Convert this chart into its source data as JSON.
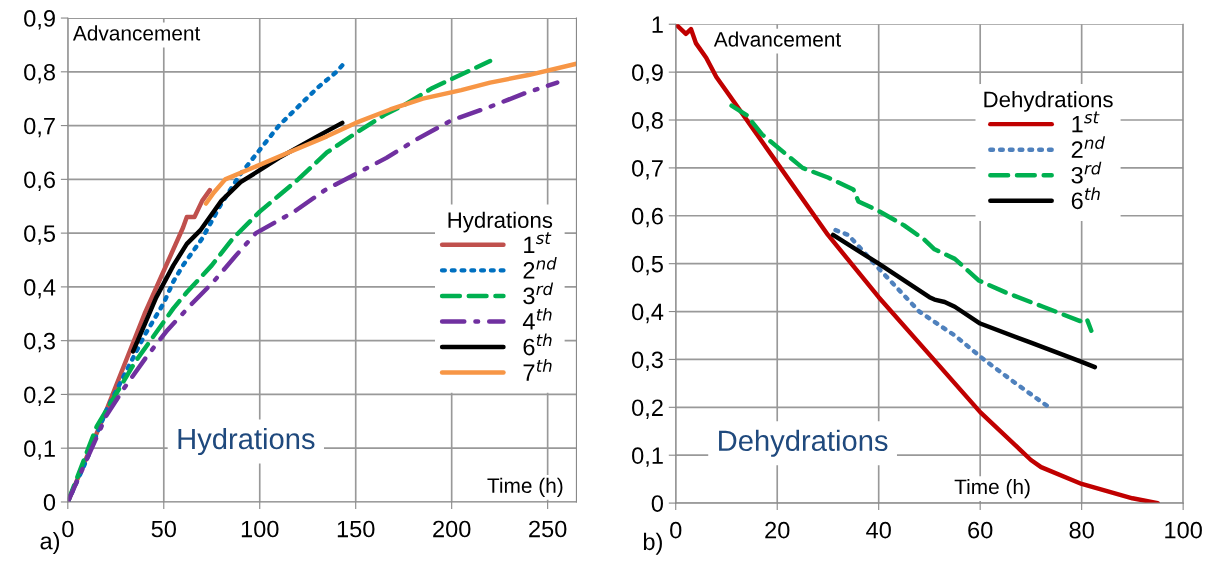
{
  "chart_data": [
    {
      "type": "line",
      "xlabel": "Time (h)",
      "ylabel": "Advancement",
      "legend_title": "Hydrations",
      "legend": "right",
      "grid": true,
      "marker": "none",
      "xlim": [
        0,
        265
      ],
      "xticks": [
        0,
        50,
        100,
        150,
        200,
        250
      ],
      "ylim": [
        0,
        0.9
      ],
      "yticks": [
        0,
        {
          "value": 0.1,
          "label": "0,1"
        },
        {
          "value": 0.2,
          "label": "0,2"
        },
        {
          "value": 0.3,
          "label": "0,3"
        },
        {
          "value": 0.4,
          "label": "0,4"
        },
        {
          "value": 0.5,
          "label": "0,5"
        },
        {
          "value": 0.6,
          "label": "0,6"
        },
        {
          "value": 0.7,
          "label": "0,7"
        },
        {
          "value": 0.8,
          "label": "0,8"
        },
        {
          "value": 0.9,
          "label": "0,9"
        }
      ],
      "annotations": [
        "Hydrations",
        "a)"
      ],
      "series": [
        {
          "name": "1$^{st}$",
          "color": "#c0504d",
          "line_style": "solid",
          "x": [
            0,
            20,
            40,
            60,
            62,
            66,
            70,
            74
          ],
          "values": [
            0,
            0.17,
            0.35,
            0.51,
            0.53,
            0.53,
            0.56,
            0.58
          ]
        },
        {
          "name": "2$^{nd}$",
          "color": "#0070c0",
          "line_style": "dotted",
          "x": [
            0,
            10,
            20,
            30,
            40,
            50,
            55,
            60,
            70,
            80,
            90,
            100,
            110,
            120,
            130,
            140,
            145
          ],
          "values": [
            0,
            0.08,
            0.17,
            0.24,
            0.31,
            0.37,
            0.41,
            0.44,
            0.49,
            0.555,
            0.61,
            0.655,
            0.7,
            0.735,
            0.77,
            0.8,
            0.82
          ]
        },
        {
          "name": "3$^{rd}$",
          "color": "#00b050",
          "line_style": "dashed",
          "x": [
            0,
            15,
            25,
            35,
            45,
            55,
            62,
            75,
            86,
            100,
            110,
            120,
            135,
            150,
            165,
            176,
            190,
            205,
            220
          ],
          "values": [
            0,
            0.14,
            0.2,
            0.26,
            0.31,
            0.36,
            0.39,
            0.44,
            0.49,
            0.54,
            0.57,
            0.6,
            0.65,
            0.686,
            0.72,
            0.74,
            0.77,
            0.795,
            0.82
          ]
        },
        {
          "name": "4$^{th}$",
          "color": "#7030a0",
          "line_style": "dashdot",
          "x": [
            0,
            10,
            20,
            29,
            41,
            52,
            65,
            76,
            88,
            98,
            118,
            134,
            150,
            166,
            182,
            200,
            220,
            238,
            255
          ],
          "values": [
            0,
            0.08,
            0.16,
            0.21,
            0.27,
            0.32,
            0.37,
            0.41,
            0.46,
            0.5,
            0.54,
            0.58,
            0.61,
            0.64,
            0.675,
            0.71,
            0.735,
            0.76,
            0.78
          ]
        },
        {
          "name": "6$^{th}$",
          "color": "#000000",
          "line_style": "solid",
          "x": [
            34,
            40,
            46,
            55,
            62,
            69,
            80,
            90,
            100,
            110,
            120,
            130,
            143
          ],
          "values": [
            0.28,
            0.33,
            0.38,
            0.44,
            0.48,
            0.505,
            0.56,
            0.595,
            0.617,
            0.64,
            0.66,
            0.68,
            0.705
          ]
        },
        {
          "name": "7$^{th}$",
          "color": "#f79646",
          "line_style": "solid",
          "x": [
            72,
            76,
            82,
            100,
            115,
            135,
            150,
            168,
            185,
            205,
            220,
            240,
            265
          ],
          "values": [
            0.555,
            0.575,
            0.6,
            0.627,
            0.65,
            0.68,
            0.705,
            0.73,
            0.75,
            0.766,
            0.78,
            0.794,
            0.815
          ]
        }
      ]
    },
    {
      "type": "line",
      "xlabel": "Time (h)",
      "ylabel": "Advancement",
      "legend_title": "Dehydrations",
      "legend": "top right",
      "grid": true,
      "marker": "none",
      "xlim": [
        0,
        100
      ],
      "xticks": [
        0,
        20,
        40,
        60,
        80,
        100
      ],
      "ylim": [
        0,
        1
      ],
      "yticks": [
        0,
        {
          "value": 0.1,
          "label": "0,1"
        },
        {
          "value": 0.2,
          "label": "0,2"
        },
        {
          "value": 0.3,
          "label": "0,3"
        },
        {
          "value": 0.4,
          "label": "0,4"
        },
        {
          "value": 0.5,
          "label": "0,5"
        },
        {
          "value": 0.6,
          "label": "0,6"
        },
        {
          "value": 0.7,
          "label": "0,7"
        },
        {
          "value": 0.8,
          "label": "0,8"
        },
        {
          "value": 0.9,
          "label": "0,9"
        },
        1
      ],
      "annotations": [
        "Dehydrations",
        "b)"
      ],
      "series": [
        {
          "name": "1$^{st}$",
          "color": "#c00000",
          "line_style": "solid",
          "x": [
            0,
            2,
            3,
            4,
            6,
            8,
            10,
            20,
            30,
            40,
            50,
            60,
            70,
            72,
            80,
            90,
            95
          ],
          "values": [
            1.0,
            0.98,
            0.99,
            0.96,
            0.93,
            0.89,
            0.86,
            0.71,
            0.56,
            0.43,
            0.31,
            0.19,
            0.09,
            0.075,
            0.04,
            0.01,
            0.0
          ]
        },
        {
          "name": "2$^{nd}$",
          "color": "#4f81bd",
          "line_style": "dotted",
          "x": [
            31.5,
            34,
            40,
            48,
            55,
            60.7,
            67,
            73.6
          ],
          "values": [
            0.57,
            0.56,
            0.49,
            0.4,
            0.35,
            0.3,
            0.25,
            0.2
          ]
        },
        {
          "name": "3$^{rd}$",
          "color": "#00b050",
          "line_style": "dashed",
          "x": [
            11,
            14,
            17,
            25,
            30,
            35,
            36,
            40,
            45,
            49,
            51,
            55,
            59.7,
            65,
            72.4,
            79.7,
            81,
            81.9
          ],
          "values": [
            0.83,
            0.81,
            0.77,
            0.7,
            0.68,
            0.655,
            0.63,
            0.61,
            0.58,
            0.55,
            0.53,
            0.51,
            0.465,
            0.44,
            0.41,
            0.38,
            0.385,
            0.36
          ]
        },
        {
          "name": "6$^{th}$",
          "color": "#000000",
          "line_style": "solid",
          "x": [
            31,
            40,
            50,
            51,
            53,
            55,
            60,
            70,
            80,
            82.6
          ],
          "values": [
            0.56,
            0.5,
            0.43,
            0.425,
            0.42,
            0.41,
            0.375,
            0.335,
            0.295,
            0.284
          ]
        }
      ]
    }
  ]
}
